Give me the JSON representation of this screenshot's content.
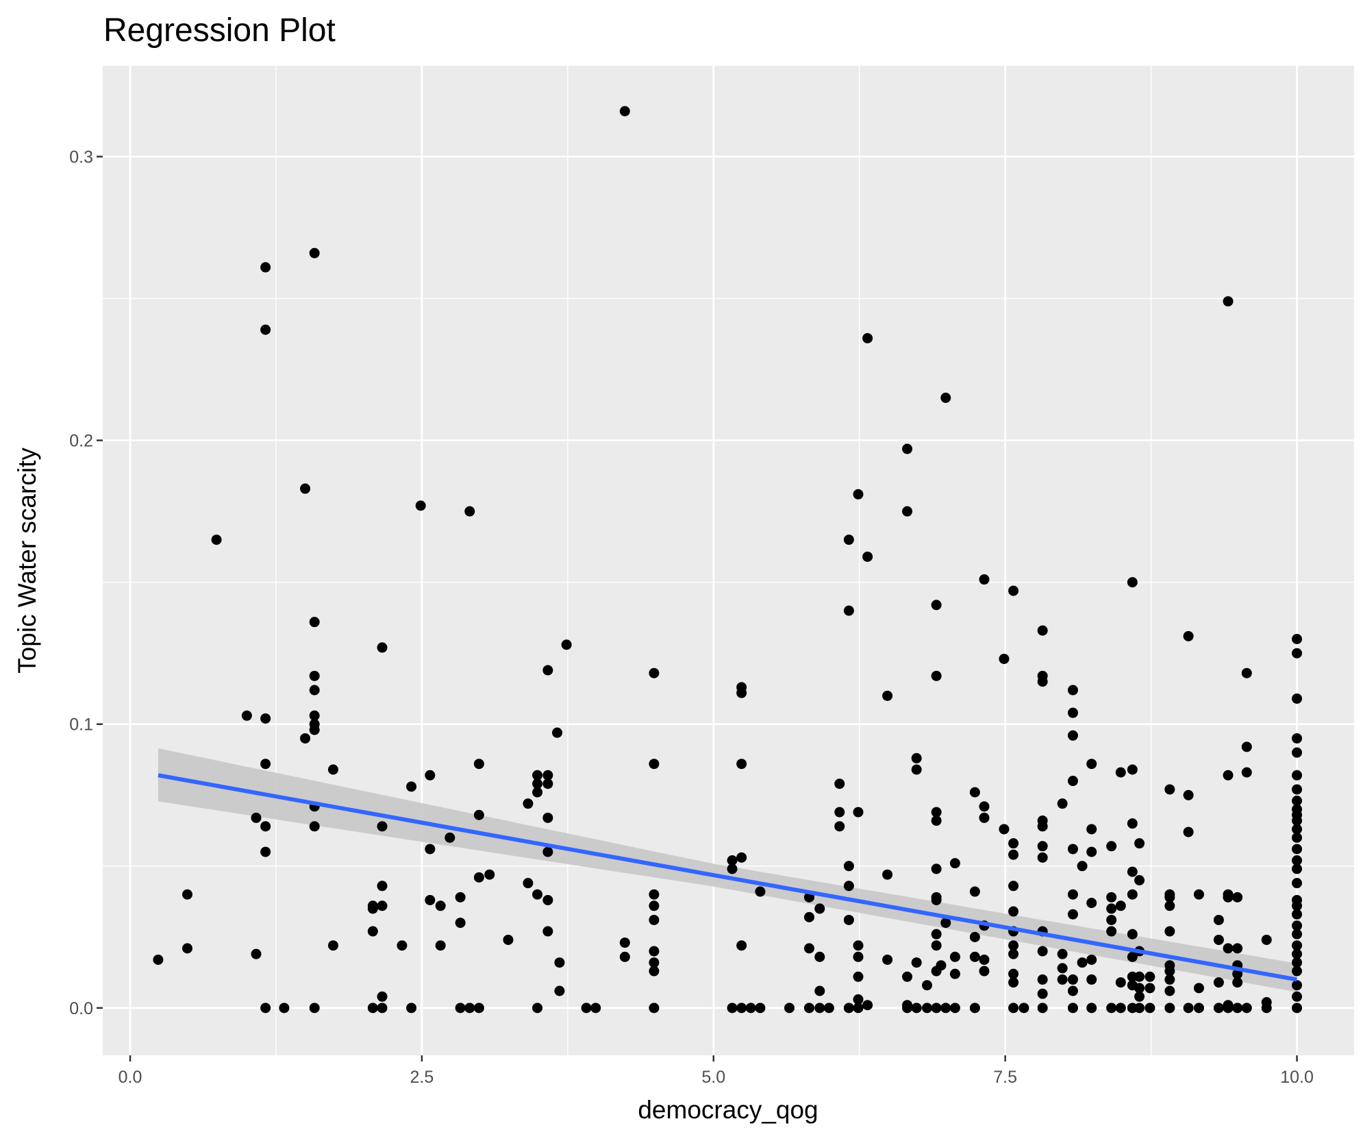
{
  "chart_data": {
    "type": "scatter",
    "title": "Regression Plot",
    "xlabel": "democracy_qog",
    "ylabel": "Topic Water scarcity",
    "xlim": [
      -0.235,
      10.49
    ],
    "ylim": [
      -0.0167,
      0.332
    ],
    "xticks": [
      0,
      2.5,
      5,
      7.5,
      10
    ],
    "xtick_labels": [
      "0.0",
      "2.5",
      "5.0",
      "7.5",
      "10.0"
    ],
    "yticks": [
      0,
      0.1,
      0.2,
      0.3
    ],
    "ytick_labels": [
      "0.0",
      "0.1",
      "0.2",
      "0.3"
    ],
    "grid": true,
    "point_color": "#000000",
    "line_color": "#3366FF",
    "band_color": "#C8C8C8",
    "panel_color": "#EBEBEB",
    "regression": {
      "x": [
        0.24,
        5,
        10
      ],
      "fit": [
        0.082,
        0.0468,
        0.01
      ],
      "lower": [
        0.0728,
        0.0428,
        0.0056
      ],
      "upper": [
        0.0915,
        0.0508,
        0.0157
      ]
    },
    "points_by_x": [
      {
        "x": 0.24,
        "y": [
          0.017
        ]
      },
      {
        "x": 0.49,
        "y": [
          0.04,
          0.021
        ]
      },
      {
        "x": 0.74,
        "y": [
          0.165
        ]
      },
      {
        "x": 1.0,
        "y": [
          0.103
        ]
      },
      {
        "x": 1.08,
        "y": [
          0.067,
          0.019
        ]
      },
      {
        "x": 1.16,
        "y": [
          0.261,
          0.239,
          0.102,
          0.086,
          0.064,
          0.055,
          0
        ]
      },
      {
        "x": 1.32,
        "y": [
          0
        ]
      },
      {
        "x": 1.5,
        "y": [
          0.183,
          0.095
        ]
      },
      {
        "x": 1.58,
        "y": [
          0.266,
          0.136,
          0.117,
          0.112,
          0.103,
          0.1,
          0.098,
          0.071,
          0.064,
          0
        ]
      },
      {
        "x": 1.74,
        "y": [
          0.084,
          0.022
        ]
      },
      {
        "x": 2.08,
        "y": [
          0.036,
          0.035,
          0.027,
          0
        ]
      },
      {
        "x": 2.16,
        "y": [
          0.127,
          0.064,
          0.043,
          0.036,
          0.004,
          0
        ]
      },
      {
        "x": 2.33,
        "y": [
          0.022
        ]
      },
      {
        "x": 2.41,
        "y": [
          0.078,
          0
        ]
      },
      {
        "x": 2.49,
        "y": [
          0.177
        ]
      },
      {
        "x": 2.57,
        "y": [
          0.082,
          0.056,
          0.038
        ]
      },
      {
        "x": 2.66,
        "y": [
          0.036,
          0.022
        ]
      },
      {
        "x": 2.74,
        "y": [
          0.06
        ]
      },
      {
        "x": 2.83,
        "y": [
          0.039,
          0.03,
          0
        ]
      },
      {
        "x": 2.91,
        "y": [
          0.175,
          0
        ]
      },
      {
        "x": 2.99,
        "y": [
          0.086,
          0.068,
          0.046,
          0
        ]
      },
      {
        "x": 3.08,
        "y": [
          0.047
        ]
      },
      {
        "x": 3.24,
        "y": [
          0.024
        ]
      },
      {
        "x": 3.41,
        "y": [
          0.072,
          0.044
        ]
      },
      {
        "x": 3.49,
        "y": [
          0.082,
          0.079,
          0.076,
          0.04,
          0
        ]
      },
      {
        "x": 3.58,
        "y": [
          0.119,
          0.082,
          0.079,
          0.067,
          0.055,
          0.038,
          0.027
        ]
      },
      {
        "x": 3.66,
        "y": [
          0.097
        ]
      },
      {
        "x": 3.68,
        "y": [
          0.016,
          0.006
        ]
      },
      {
        "x": 3.74,
        "y": [
          0.128
        ]
      },
      {
        "x": 3.91,
        "y": [
          0
        ]
      },
      {
        "x": 3.99,
        "y": [
          0
        ]
      },
      {
        "x": 4.24,
        "y": [
          0.316,
          0.023,
          0.018
        ]
      },
      {
        "x": 4.49,
        "y": [
          0.118,
          0.086,
          0.04,
          0.036,
          0.031,
          0.02,
          0.016,
          0.013,
          0
        ]
      },
      {
        "x": 5.16,
        "y": [
          0.052,
          0.049,
          0
        ]
      },
      {
        "x": 5.24,
        "y": [
          0.113,
          0.111,
          0.086,
          0.053,
          0.022,
          0
        ]
      },
      {
        "x": 5.32,
        "y": [
          0
        ]
      },
      {
        "x": 5.4,
        "y": [
          0.041,
          0
        ]
      },
      {
        "x": 5.65,
        "y": [
          0
        ]
      },
      {
        "x": 5.82,
        "y": [
          0.039,
          0.032,
          0.021,
          0
        ]
      },
      {
        "x": 5.91,
        "y": [
          0.035,
          0.018,
          0.006,
          0
        ]
      },
      {
        "x": 5.99,
        "y": [
          0
        ]
      },
      {
        "x": 6.08,
        "y": [
          0.079,
          0.069,
          0.064
        ]
      },
      {
        "x": 6.16,
        "y": [
          0.165,
          0.14,
          0.05,
          0.043,
          0.031,
          0
        ]
      },
      {
        "x": 6.24,
        "y": [
          0.181,
          0.069,
          0.022,
          0.018,
          0.011,
          0.003,
          0
        ]
      },
      {
        "x": 6.32,
        "y": [
          0.236,
          0.159,
          0.001
        ]
      },
      {
        "x": 6.49,
        "y": [
          0.11,
          0.047,
          0.017
        ]
      },
      {
        "x": 6.66,
        "y": [
          0.197,
          0.175,
          0.011,
          0.001,
          0
        ]
      },
      {
        "x": 6.74,
        "y": [
          0.088,
          0.084,
          0.016,
          0
        ]
      },
      {
        "x": 6.83,
        "y": [
          0.008,
          0
        ]
      },
      {
        "x": 6.91,
        "y": [
          0.142,
          0.117,
          0.069,
          0.066,
          0.049,
          0.039,
          0.038,
          0.026,
          0.022,
          0.013,
          0
        ]
      },
      {
        "x": 6.95,
        "y": [
          0.015
        ]
      },
      {
        "x": 6.99,
        "y": [
          0.215,
          0.03,
          0
        ]
      },
      {
        "x": 7.07,
        "y": [
          0.051,
          0.018,
          0.012,
          0
        ]
      },
      {
        "x": 7.24,
        "y": [
          0.076,
          0.041,
          0.025,
          0.018,
          0
        ]
      },
      {
        "x": 7.32,
        "y": [
          0.151,
          0.071,
          0.067,
          0.029,
          0.017,
          0.013
        ]
      },
      {
        "x": 7.49,
        "y": [
          0.123,
          0.063
        ]
      },
      {
        "x": 7.57,
        "y": [
          0.147,
          0.058,
          0.054,
          0.043,
          0.034,
          0.027,
          0.022,
          0.019,
          0.012,
          0.009,
          0
        ]
      },
      {
        "x": 7.66,
        "y": [
          0
        ]
      },
      {
        "x": 7.82,
        "y": [
          0.133,
          0.117,
          0.115,
          0.066,
          0.064,
          0.057,
          0.053,
          0.027,
          0.02,
          0.01,
          0.005,
          0
        ]
      },
      {
        "x": 7.99,
        "y": [
          0.072,
          0.019,
          0.014,
          0.01
        ]
      },
      {
        "x": 8.08,
        "y": [
          0.112,
          0.104,
          0.096,
          0.08,
          0.056,
          0.04,
          0.033,
          0.01,
          0.006,
          0
        ]
      },
      {
        "x": 8.16,
        "y": [
          0.05,
          0.016
        ]
      },
      {
        "x": 8.24,
        "y": [
          0.086,
          0.063,
          0.055,
          0.037,
          0.017,
          0.01,
          0
        ]
      },
      {
        "x": 8.41,
        "y": [
          0.057,
          0.039,
          0.035,
          0.031,
          0.027,
          0
        ]
      },
      {
        "x": 8.49,
        "y": [
          0.083,
          0.036,
          0.009,
          0
        ]
      },
      {
        "x": 8.59,
        "y": [
          0.15,
          0.084,
          0.065,
          0.048,
          0.04,
          0.026,
          0.018,
          0.011,
          0.008,
          0
        ]
      },
      {
        "x": 8.65,
        "y": [
          0.058,
          0.045,
          0.02,
          0.011,
          0.007,
          0.004,
          0
        ]
      },
      {
        "x": 8.74,
        "y": [
          0.011,
          0.007,
          0
        ]
      },
      {
        "x": 8.91,
        "y": [
          0.077,
          0.04,
          0.039,
          0.036,
          0.027,
          0.015,
          0.013,
          0.01,
          0.006,
          0
        ]
      },
      {
        "x": 9.07,
        "y": [
          0.131,
          0.075,
          0.062,
          0
        ]
      },
      {
        "x": 9.16,
        "y": [
          0.04,
          0.007,
          0
        ]
      },
      {
        "x": 9.33,
        "y": [
          0.031,
          0.024,
          0.009,
          0
        ]
      },
      {
        "x": 9.41,
        "y": [
          0.249,
          0.082,
          0.04,
          0.039,
          0.021,
          0.001,
          0
        ]
      },
      {
        "x": 9.49,
        "y": [
          0.039,
          0.021,
          0.015,
          0.012,
          0.009,
          0
        ]
      },
      {
        "x": 9.57,
        "y": [
          0.118,
          0.092,
          0.083,
          0
        ]
      },
      {
        "x": 9.74,
        "y": [
          0.024,
          0.002,
          0
        ]
      },
      {
        "x": 10.0,
        "y": [
          0.13,
          0.125,
          0.109,
          0.095,
          0.09,
          0.082,
          0.077,
          0.073,
          0.07,
          0.068,
          0.066,
          0.063,
          0.06,
          0.056,
          0.052,
          0.049,
          0.044,
          0.038,
          0.036,
          0.033,
          0.029,
          0.026,
          0.022,
          0.019,
          0.016,
          0.013,
          0.008,
          0.004,
          0
        ]
      }
    ]
  }
}
